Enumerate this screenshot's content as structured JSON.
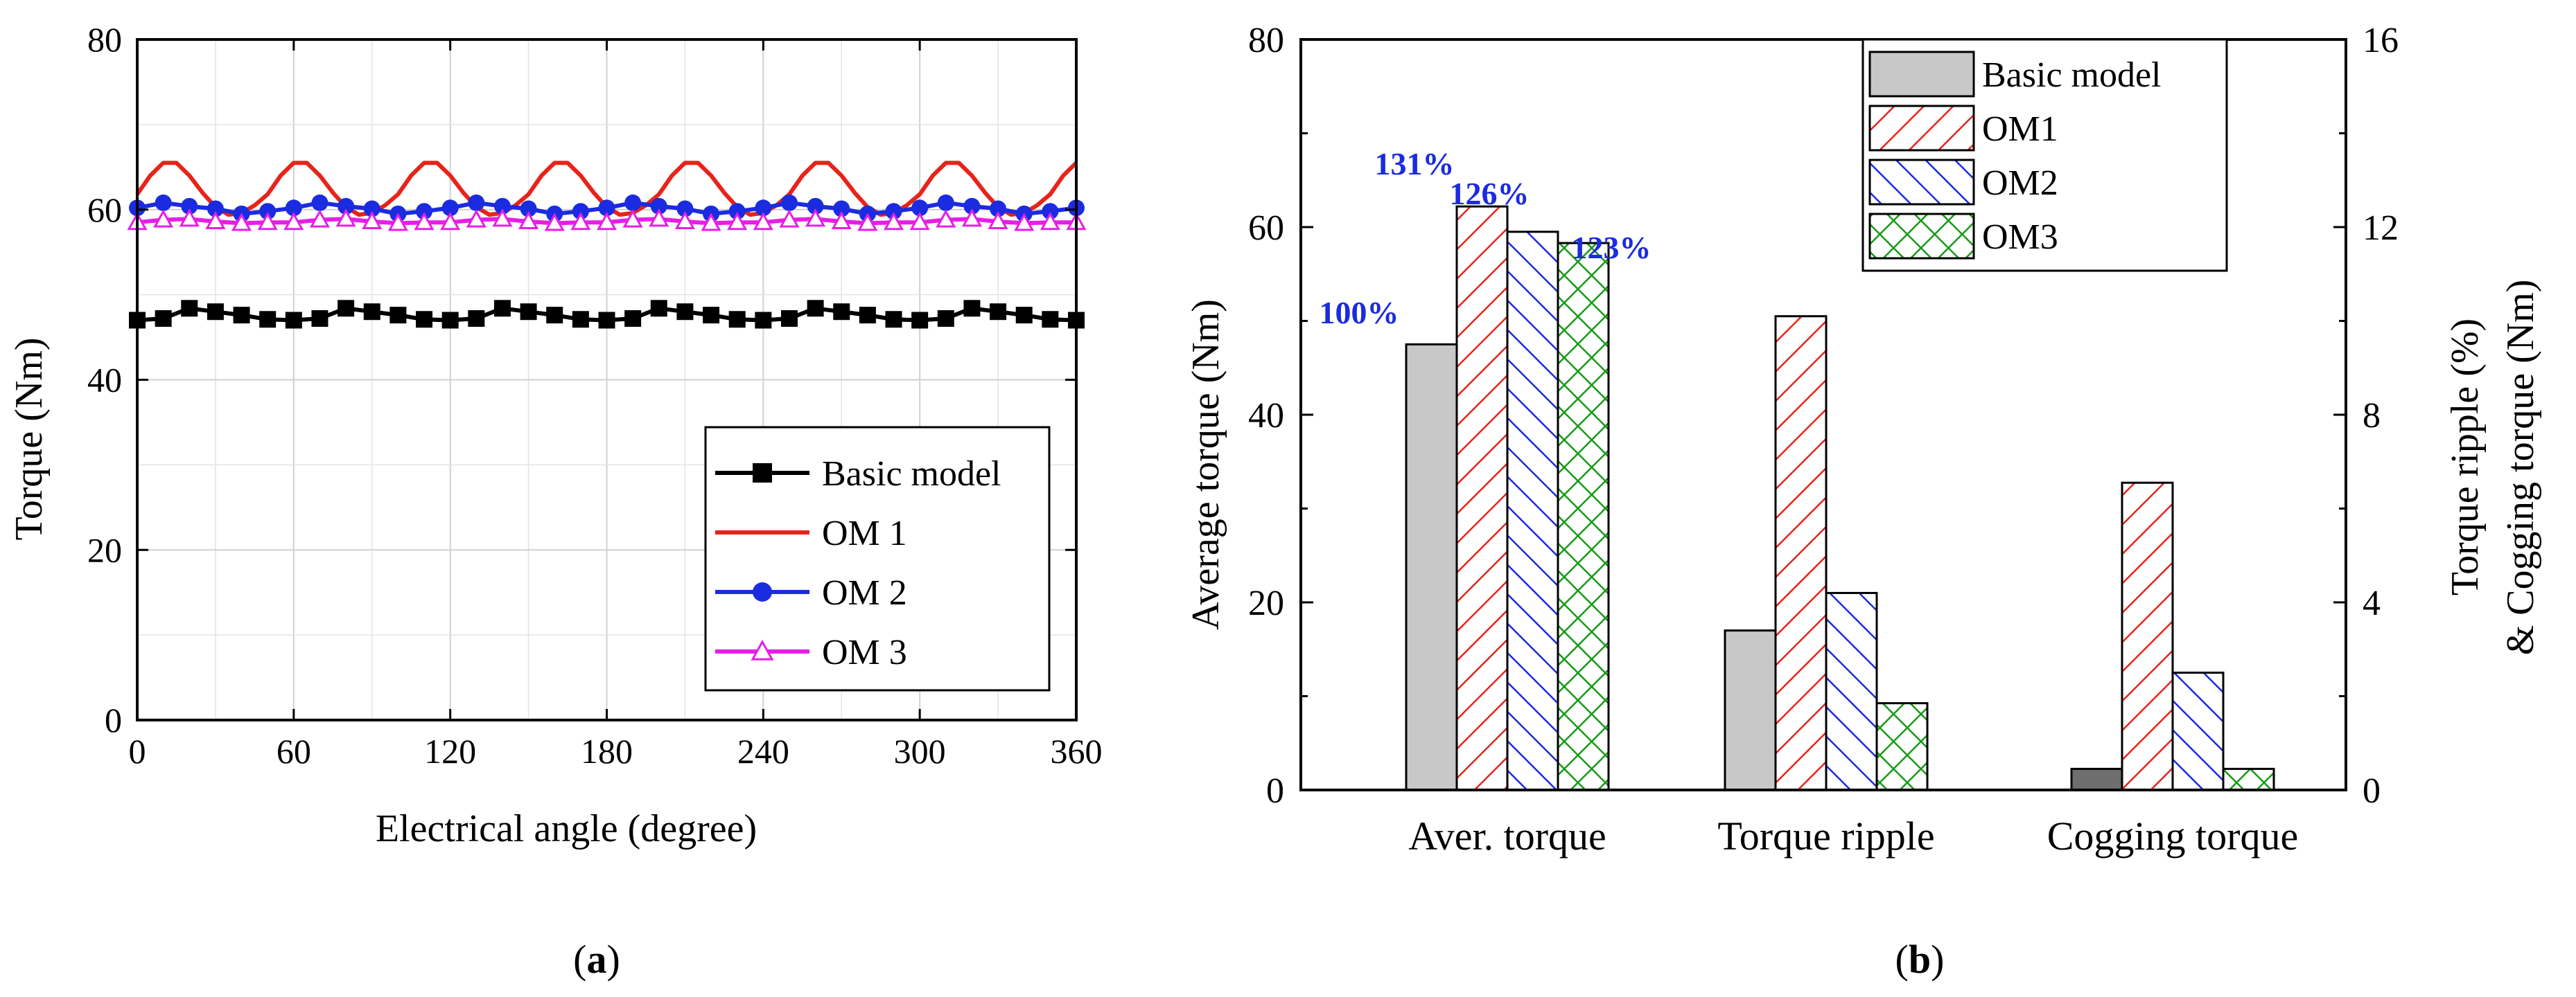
{
  "panel_a": {
    "label_prefix": "(",
    "label_letter": "a",
    "label_suffix": ")"
  },
  "panel_b": {
    "label_prefix": "(",
    "label_letter": "b",
    "label_suffix": ")"
  },
  "colors": {
    "basic": "#000000",
    "om1": "#e8231a",
    "om2": "#1b2be0",
    "om3": "#e61ee6",
    "bar_basic": "#c8c8c8",
    "bar_basic_dark": "#6e6e6e",
    "bar_om1": "#e8231a",
    "bar_om2": "#1b2be0",
    "bar_om3": "#169a16",
    "percent_label": "#1b2be0"
  },
  "chart_data": [
    {
      "type": "line",
      "xlabel": "Electrical angle (degree)",
      "ylabel": "Torque (Nm)",
      "xlim": [
        0,
        360
      ],
      "ylim": [
        0,
        80
      ],
      "xticks": [
        "0",
        "60",
        "120",
        "180",
        "240",
        "300",
        "360"
      ],
      "yticks": [
        "0",
        "20",
        "40",
        "60",
        "80"
      ],
      "grid": true,
      "legend_position": "bottom-right",
      "series": [
        {
          "name": "Basic model",
          "marker": "square",
          "x": [
            0,
            10,
            20,
            30,
            40,
            50,
            60,
            70,
            80,
            90,
            100,
            110,
            120,
            130,
            140,
            150,
            160,
            170,
            180,
            190,
            200,
            210,
            220,
            230,
            240,
            250,
            260,
            270,
            280,
            290,
            300,
            310,
            320,
            330,
            340,
            350,
            360
          ],
          "values": [
            47.0,
            47.2,
            48.4,
            48.0,
            47.6,
            47.1,
            47.0,
            47.2,
            48.4,
            48.0,
            47.6,
            47.1,
            47.0,
            47.2,
            48.4,
            48.0,
            47.6,
            47.1,
            47.0,
            47.2,
            48.4,
            48.0,
            47.6,
            47.1,
            47.0,
            47.2,
            48.4,
            48.0,
            47.6,
            47.1,
            47.0,
            47.2,
            48.4,
            48.0,
            47.6,
            47.1,
            47.0
          ]
        },
        {
          "name": "OM 1",
          "marker": "none",
          "x": [
            0,
            5,
            10,
            15,
            20,
            25,
            30,
            35,
            40,
            45,
            50,
            55,
            60,
            65,
            70,
            75,
            80,
            85,
            90,
            95,
            100,
            105,
            110,
            115,
            120,
            125,
            130,
            135,
            140,
            145,
            150,
            155,
            160,
            165,
            170,
            175,
            180,
            185,
            190,
            195,
            200,
            205,
            210,
            215,
            220,
            225,
            230,
            235,
            240,
            245,
            250,
            255,
            260,
            265,
            270,
            275,
            280,
            285,
            290,
            295,
            300,
            305,
            310,
            315,
            320,
            325,
            330,
            335,
            340,
            345,
            350,
            355,
            360
          ],
          "values": [
            61.8,
            64.0,
            65.5,
            65.5,
            64.0,
            62.0,
            60.3,
            59.4,
            59.6,
            60.5,
            61.8,
            64.0,
            65.5,
            65.5,
            64.0,
            62.0,
            60.3,
            59.4,
            59.6,
            60.5,
            61.8,
            64.0,
            65.5,
            65.5,
            64.0,
            62.0,
            60.3,
            59.4,
            59.6,
            60.5,
            61.8,
            64.0,
            65.5,
            65.5,
            64.0,
            62.0,
            60.3,
            59.4,
            59.6,
            60.5,
            61.8,
            64.0,
            65.5,
            65.5,
            64.0,
            62.0,
            60.3,
            59.4,
            59.6,
            60.5,
            61.8,
            64.0,
            65.5,
            65.5,
            64.0,
            62.0,
            60.3,
            59.4,
            59.6,
            60.5,
            61.8,
            64.0,
            65.5,
            65.5,
            64.0,
            62.0,
            60.3,
            59.4,
            59.6,
            60.5,
            61.8,
            64.0,
            65.5
          ]
        },
        {
          "name": "OM 2",
          "marker": "circle",
          "x": [
            0,
            10,
            20,
            30,
            40,
            50,
            60,
            70,
            80,
            90,
            100,
            110,
            120,
            130,
            140,
            150,
            160,
            170,
            180,
            190,
            200,
            210,
            220,
            230,
            240,
            250,
            260,
            270,
            280,
            290,
            300,
            310,
            320,
            330,
            340,
            350,
            360
          ],
          "values": [
            60.2,
            60.8,
            60.4,
            60.1,
            59.5,
            59.8,
            60.2,
            60.8,
            60.4,
            60.1,
            59.5,
            59.8,
            60.2,
            60.8,
            60.4,
            60.1,
            59.5,
            59.8,
            60.2,
            60.8,
            60.4,
            60.1,
            59.5,
            59.8,
            60.2,
            60.8,
            60.4,
            60.1,
            59.5,
            59.8,
            60.2,
            60.8,
            60.4,
            60.1,
            59.5,
            59.8,
            60.2
          ]
        },
        {
          "name": "OM 3",
          "marker": "triangle",
          "x": [
            0,
            10,
            20,
            30,
            40,
            50,
            60,
            70,
            80,
            90,
            100,
            110,
            120,
            130,
            140,
            150,
            160,
            170,
            180,
            190,
            200,
            210,
            220,
            230,
            240,
            250,
            260,
            270,
            280,
            290,
            300,
            310,
            320,
            330,
            340,
            350,
            360
          ],
          "values": [
            58.5,
            58.8,
            58.9,
            58.6,
            58.4,
            58.5,
            58.5,
            58.8,
            58.9,
            58.6,
            58.4,
            58.5,
            58.5,
            58.8,
            58.9,
            58.6,
            58.4,
            58.5,
            58.5,
            58.8,
            58.9,
            58.6,
            58.4,
            58.5,
            58.5,
            58.8,
            58.9,
            58.6,
            58.4,
            58.5,
            58.5,
            58.8,
            58.9,
            58.6,
            58.4,
            58.5,
            58.5
          ]
        }
      ]
    },
    {
      "type": "bar",
      "categories": [
        "Aver. torque",
        "Torque ripple",
        "Cogging torque"
      ],
      "ylabel": "Average torque (Nm)",
      "y2label_line1": "Torque ripple (%)",
      "y2label_line2": "& Cogging torque (Nm)",
      "ylim": [
        0,
        80
      ],
      "y2lim": [
        0,
        16
      ],
      "yticks": [
        "0",
        "20",
        "40",
        "60",
        "80"
      ],
      "y2ticks": [
        "0",
        "4",
        "8",
        "12",
        "16"
      ],
      "grid": false,
      "legend_position": "top-right",
      "series": [
        {
          "name": "Basic model",
          "pattern": "solid",
          "values": [
            47.5,
            3.4,
            0.45
          ]
        },
        {
          "name": "OM1",
          "pattern": "diagonal-right",
          "values": [
            62.2,
            10.1,
            6.55
          ]
        },
        {
          "name": "OM2",
          "pattern": "diagonal-left",
          "values": [
            59.5,
            4.2,
            2.5
          ]
        },
        {
          "name": "OM3",
          "pattern": "crosshatch",
          "values": [
            58.3,
            1.85,
            0.45
          ]
        }
      ],
      "annotations": [
        "100%",
        "131%",
        "126%",
        "123%"
      ]
    }
  ]
}
